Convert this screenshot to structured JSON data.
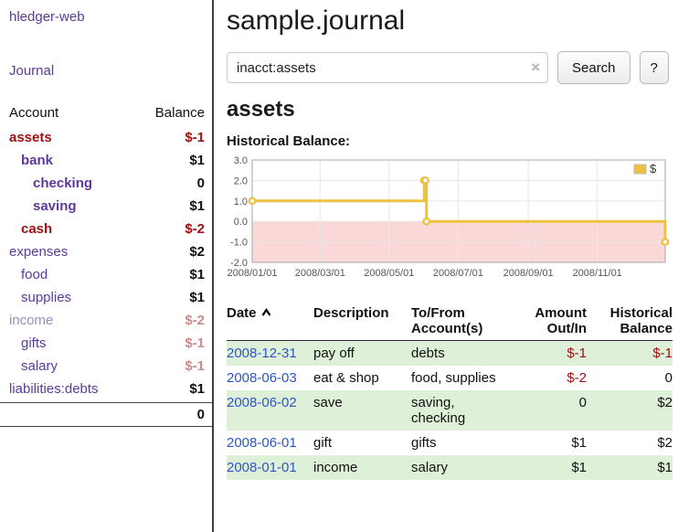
{
  "app": {
    "brand": "hledger-web",
    "nav_journal": "Journal"
  },
  "sidebar": {
    "header": {
      "account": "Account",
      "balance": "Balance"
    },
    "accounts": [
      {
        "name": "assets",
        "indent": 0,
        "bold": true,
        "name_color": "red",
        "balance": "$-1",
        "balance_color": "red"
      },
      {
        "name": "bank",
        "indent": 1,
        "bold": true,
        "name_color": "purple",
        "balance": "$1",
        "balance_color": "black"
      },
      {
        "name": "checking",
        "indent": 2,
        "bold": true,
        "name_color": "purple",
        "balance": "0",
        "balance_color": "black"
      },
      {
        "name": "saving",
        "indent": 2,
        "bold": true,
        "name_color": "purple",
        "balance": "$1",
        "balance_color": "black"
      },
      {
        "name": "cash",
        "indent": 1,
        "bold": true,
        "name_color": "red",
        "balance": "$-2",
        "balance_color": "red"
      },
      {
        "name": "expenses",
        "indent": 0,
        "bold": false,
        "name_color": "purple",
        "balance": "$2",
        "balance_color": "black"
      },
      {
        "name": "food",
        "indent": 1,
        "bold": false,
        "name_color": "purple",
        "balance": "$1",
        "balance_color": "black"
      },
      {
        "name": "supplies",
        "indent": 1,
        "bold": false,
        "name_color": "purple",
        "balance": "$1",
        "balance_color": "black"
      },
      {
        "name": "income",
        "indent": 0,
        "bold": false,
        "name_color": "dimpurple",
        "balance": "$-2",
        "balance_color": "dimred"
      },
      {
        "name": "gifts",
        "indent": 1,
        "bold": false,
        "name_color": "purple",
        "balance": "$-1",
        "balance_color": "dimred"
      },
      {
        "name": "salary",
        "indent": 1,
        "bold": false,
        "name_color": "purple",
        "balance": "$-1",
        "balance_color": "dimred"
      },
      {
        "name": "liabilities:debts",
        "indent": 0,
        "bold": false,
        "name_color": "purple",
        "balance": "$1",
        "balance_color": "black"
      }
    ],
    "total": "0"
  },
  "main": {
    "title": "sample.journal",
    "search": {
      "value": "inacct:assets",
      "clear_icon": "×",
      "button_label": "Search",
      "help_label": "?"
    },
    "account_heading": "assets"
  },
  "chart_data": {
    "type": "line",
    "step": true,
    "title": "Historical Balance:",
    "series": [
      {
        "name": "$",
        "x": [
          "2008-01-01",
          "2008-06-01",
          "2008-06-02",
          "2008-06-03",
          "2008-12-31"
        ],
        "values": [
          1,
          2,
          2,
          0,
          -1
        ]
      }
    ],
    "xlim": [
      "2008-01-01",
      "2008-12-31"
    ],
    "ylim": [
      -2,
      3
    ],
    "yticks": [
      3,
      2,
      1,
      0,
      -1,
      -2
    ],
    "xticks": [
      "2008/01/01",
      "2008/03/01",
      "2008/05/01",
      "2008/07/01",
      "2008/09/01",
      "2008/11/01"
    ],
    "grid": true,
    "legend_position": "top-right",
    "line_color": "#edc240",
    "negative_region_color": "#fbd8d8"
  },
  "register": {
    "headers": {
      "date": "Date",
      "description": "Description",
      "accounts": "To/From Account(s)",
      "amount": "Amount Out/In",
      "balance": "Historical Balance"
    },
    "sort": "ascending",
    "rows": [
      {
        "date": "2008-12-31",
        "description": "pay off",
        "accounts": "debts",
        "amount": "$-1",
        "amount_negative": true,
        "balance": "$-1",
        "balance_negative": true,
        "shaded": true
      },
      {
        "date": "2008-06-03",
        "description": "eat & shop",
        "accounts": "food, supplies",
        "amount": "$-2",
        "amount_negative": true,
        "balance": "0",
        "balance_negative": false,
        "shaded": false
      },
      {
        "date": "2008-06-02",
        "description": "save",
        "accounts": "saving, checking",
        "amount": "0",
        "amount_negative": false,
        "balance": "$2",
        "balance_negative": false,
        "shaded": true
      },
      {
        "date": "2008-06-01",
        "description": "gift",
        "accounts": "gifts",
        "amount": "$1",
        "amount_negative": false,
        "balance": "$2",
        "balance_negative": false,
        "shaded": false
      },
      {
        "date": "2008-01-01",
        "description": "income",
        "accounts": "salary",
        "amount": "$1",
        "amount_negative": false,
        "balance": "$1",
        "balance_negative": false,
        "shaded": true
      }
    ]
  },
  "colors": {
    "link_purple": "#5b3a9c",
    "muted_purple": "#9d8cbe",
    "negative_red": "#a01010",
    "muted_red": "#c98c8c",
    "date_blue": "#2d55c8",
    "row_green": "#dff0d8",
    "chart_gold": "#edc240",
    "chart_negative_pink": "#fbd8d8"
  }
}
